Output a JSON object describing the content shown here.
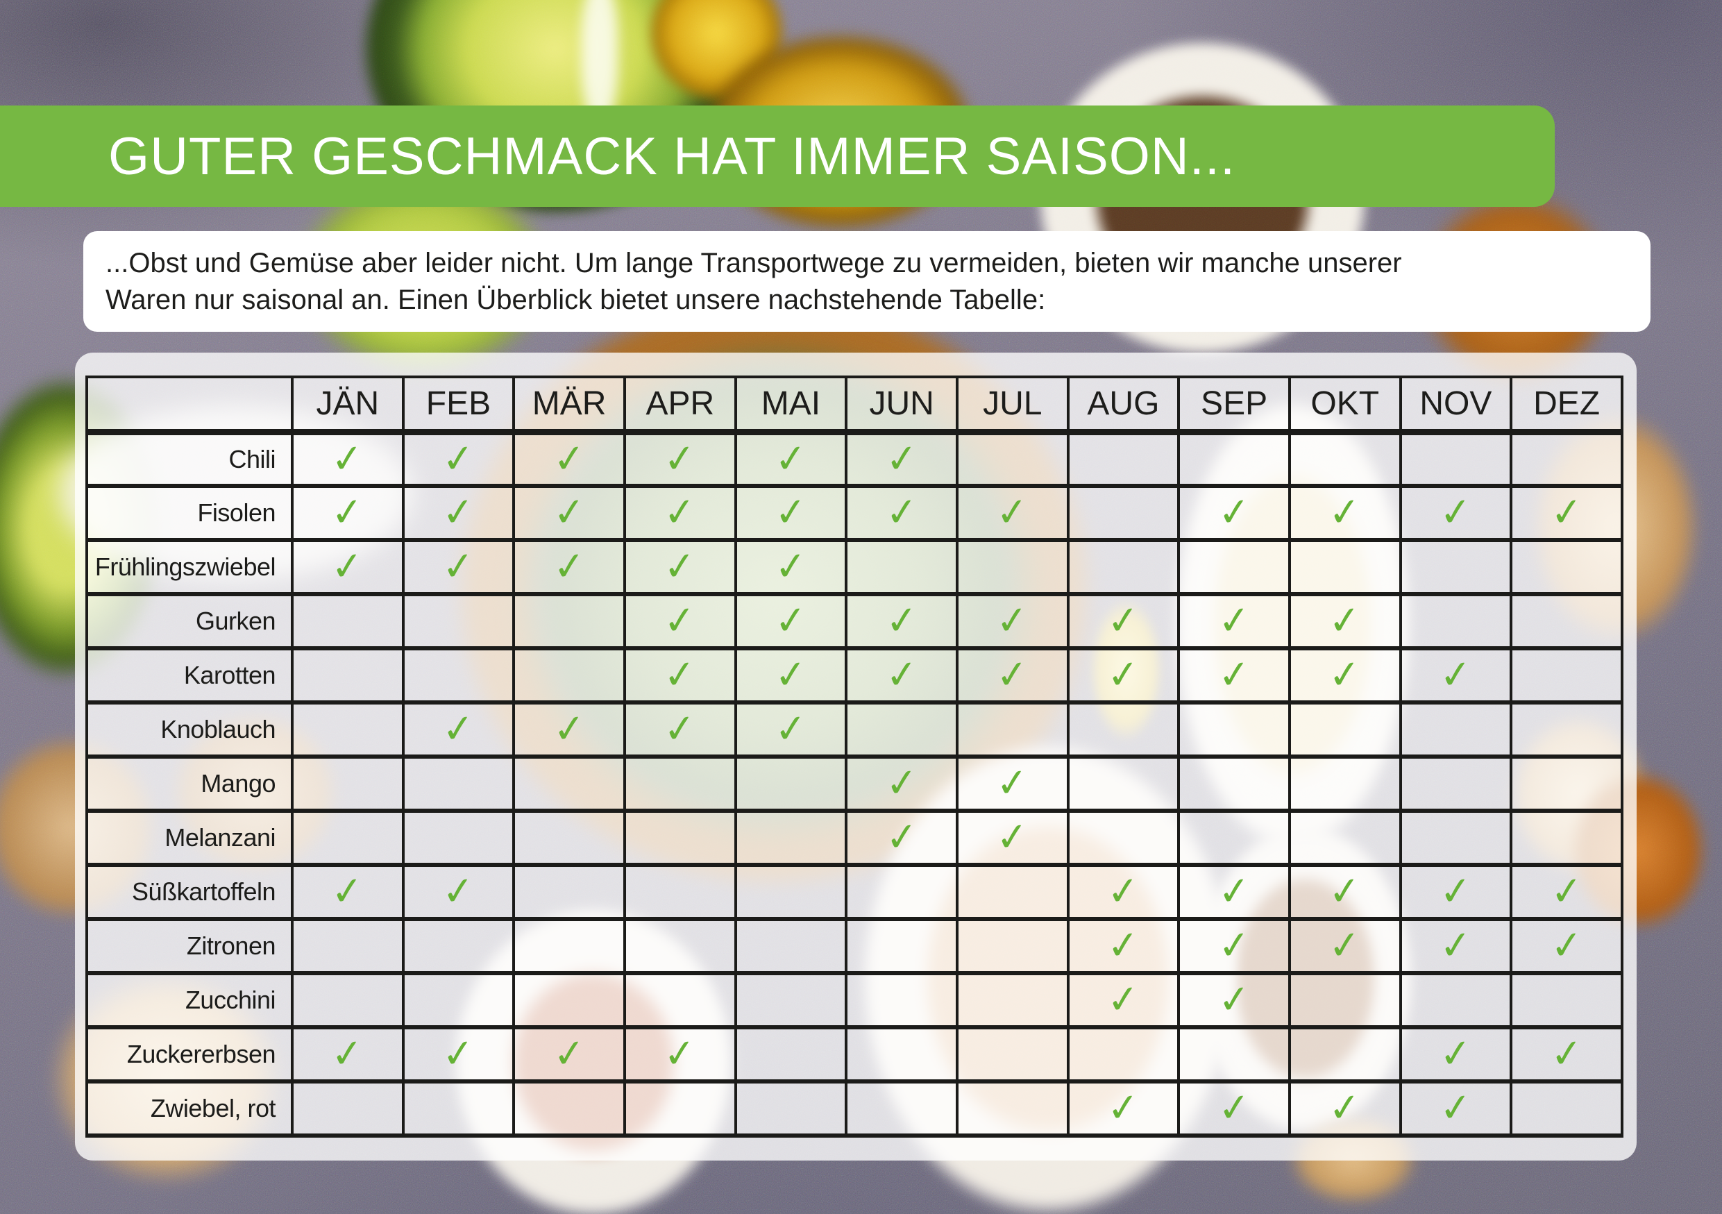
{
  "banner": {
    "title": "GUTER GESCHMACK HAT IMMER SAISON..."
  },
  "intro": {
    "lines": [
      "...Obst und Gemüse aber leider nicht. Um lange Transportwege zu vermeiden, bieten wir manche unserer",
      "Waren nur saisonal an. Einen Überblick bietet unsere nachstehende Tabelle:"
    ]
  },
  "table": {
    "months": [
      "JÄN",
      "FEB",
      "MÄR",
      "APR",
      "MAI",
      "JUN",
      "JUL",
      "AUG",
      "SEP",
      "OKT",
      "NOV",
      "DEZ"
    ],
    "check_symbol": "✓",
    "rows": [
      {
        "label": "Chili",
        "availability": [
          1,
          1,
          1,
          1,
          1,
          1,
          0,
          0,
          0,
          0,
          0,
          0
        ]
      },
      {
        "label": "Fisolen",
        "availability": [
          1,
          1,
          1,
          1,
          1,
          1,
          1,
          0,
          1,
          1,
          1,
          1
        ]
      },
      {
        "label": "Frühlingszwiebel",
        "availability": [
          1,
          1,
          1,
          1,
          1,
          0,
          0,
          0,
          0,
          0,
          0,
          0
        ]
      },
      {
        "label": "Gurken",
        "availability": [
          0,
          0,
          0,
          1,
          1,
          1,
          1,
          1,
          1,
          1,
          0,
          0
        ]
      },
      {
        "label": "Karotten",
        "availability": [
          0,
          0,
          0,
          1,
          1,
          1,
          1,
          1,
          1,
          1,
          1,
          0
        ]
      },
      {
        "label": "Knoblauch",
        "availability": [
          0,
          1,
          1,
          1,
          1,
          0,
          0,
          0,
          0,
          0,
          0,
          0
        ]
      },
      {
        "label": "Mango",
        "availability": [
          0,
          0,
          0,
          0,
          0,
          1,
          1,
          0,
          0,
          0,
          0,
          0
        ]
      },
      {
        "label": "Melanzani",
        "availability": [
          0,
          0,
          0,
          0,
          0,
          1,
          1,
          0,
          0,
          0,
          0,
          0
        ]
      },
      {
        "label": "Süßkartoffeln",
        "availability": [
          1,
          1,
          0,
          0,
          0,
          0,
          0,
          1,
          1,
          1,
          1,
          1
        ]
      },
      {
        "label": "Zitronen",
        "availability": [
          0,
          0,
          0,
          0,
          0,
          0,
          0,
          1,
          1,
          1,
          1,
          1
        ]
      },
      {
        "label": "Zucchini",
        "availability": [
          0,
          0,
          0,
          0,
          0,
          0,
          0,
          1,
          1,
          0,
          0,
          0
        ]
      },
      {
        "label": "Zuckererbsen",
        "availability": [
          1,
          1,
          1,
          1,
          0,
          0,
          0,
          0,
          0,
          0,
          1,
          1
        ]
      },
      {
        "label": "Zwiebel, rot",
        "availability": [
          0,
          0,
          0,
          0,
          0,
          0,
          0,
          1,
          1,
          1,
          1,
          0
        ]
      }
    ]
  },
  "colors": {
    "banner_green": "#76b843",
    "check_green": "#65b236"
  }
}
